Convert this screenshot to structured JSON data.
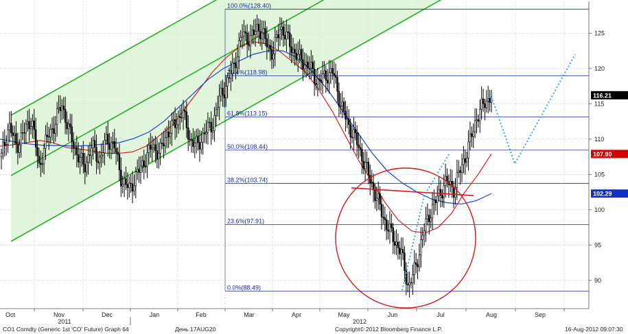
{
  "chart_data": {
    "type": "candlestick",
    "title": "",
    "xlabel": "",
    "ylabel": "",
    "ylim": [
      86,
      129.5
    ],
    "y_ticks": [
      90,
      95,
      100,
      105,
      110,
      115,
      120,
      125
    ],
    "x_month_labels": [
      "Oct",
      "Nov",
      "Dec",
      "Jan",
      "Feb",
      "Mar",
      "Apr",
      "May",
      "Jun",
      "Jul",
      "Aug",
      "Sep"
    ],
    "x_year_labels": [
      "2011",
      "2012"
    ],
    "last_price": 116.21,
    "fibonacci_levels": [
      {
        "label": "100.0%(128.40)",
        "value": 128.4
      },
      {
        "label": "76.4%(118.98)",
        "value": 118.98
      },
      {
        "label": "61.8%(113.15)",
        "value": 113.15
      },
      {
        "label": "50.0%(108.44)",
        "value": 108.44
      },
      {
        "label": "38.2%(103.74)",
        "value": 103.74
      },
      {
        "label": "23.6%(97.91)",
        "value": 97.91
      },
      {
        "label": "0.0%(88.49)",
        "value": 88.49
      }
    ],
    "badges": [
      {
        "label": "116.21",
        "value": 116.21,
        "color": "#000000"
      },
      {
        "label": "107.90",
        "value": 107.9,
        "color": "#d40000"
      },
      {
        "label": "102.29",
        "value": 102.29,
        "color": "#1030c0"
      }
    ],
    "series_close": [
      107.5,
      112.0,
      109.0,
      111.0,
      113.0,
      106.0,
      110.0,
      112.0,
      115.0,
      111.0,
      108.0,
      106.0,
      109.0,
      107.0,
      110.0,
      109.0,
      104.0,
      103.0,
      105.0,
      107.0,
      109.0,
      108.0,
      111.0,
      112.0,
      114.0,
      110.0,
      109.0,
      111.0,
      112.0,
      116.0,
      118.0,
      121.0,
      125.0,
      124.0,
      126.0,
      124.0,
      122.0,
      126.0,
      124.0,
      122.0,
      121.0,
      120.0,
      118.0,
      119.0,
      119.5,
      115.0,
      112.0,
      110.0,
      107.0,
      104.0,
      101.0,
      98.0,
      96.0,
      94.0,
      89.0,
      92.0,
      97.0,
      100.0,
      102.0,
      104.0,
      103.0,
      106.0,
      109.0,
      113.0,
      115.0,
      116.21
    ],
    "ma_red": [
      109.0,
      109.2,
      109.5,
      109.8,
      109.5,
      108.8,
      108.6,
      108.3,
      108.0,
      108.0,
      108.2,
      109.0,
      110.5,
      112.0,
      114.5,
      117.0,
      119.5,
      121.5,
      123.0,
      123.8,
      123.5,
      122.5,
      121.0,
      119.5,
      117.0,
      114.0,
      110.5,
      107.0,
      104.0,
      101.0,
      98.5,
      97.0,
      96.7,
      97.5,
      99.5,
      102.5,
      105.0,
      107.9
    ],
    "ma_blue": [
      110.0,
      109.6,
      109.3,
      109.1,
      109.1,
      109.0,
      109.1,
      109.3,
      109.5,
      110.1,
      111.0,
      112.5,
      114.5,
      116.5,
      118.5,
      120.0,
      121.0,
      122.0,
      122.5,
      122.5,
      121.5,
      119.5,
      117.0,
      114.0,
      111.0,
      108.0,
      105.5,
      103.8,
      102.5,
      101.5,
      101.0,
      100.8,
      101.3,
      102.29
    ],
    "projection_points": [
      116.0,
      106.5,
      122.0
    ],
    "footer": {
      "left": "CO1 Comdty (Generic 1st 'CO' Future) Graph 64",
      "center_left": "День 17AUG20",
      "center": "Copyright© 2012 Bloomberg Finance L.P.",
      "right": "16-Aug-2012 09:07:30"
    }
  }
}
